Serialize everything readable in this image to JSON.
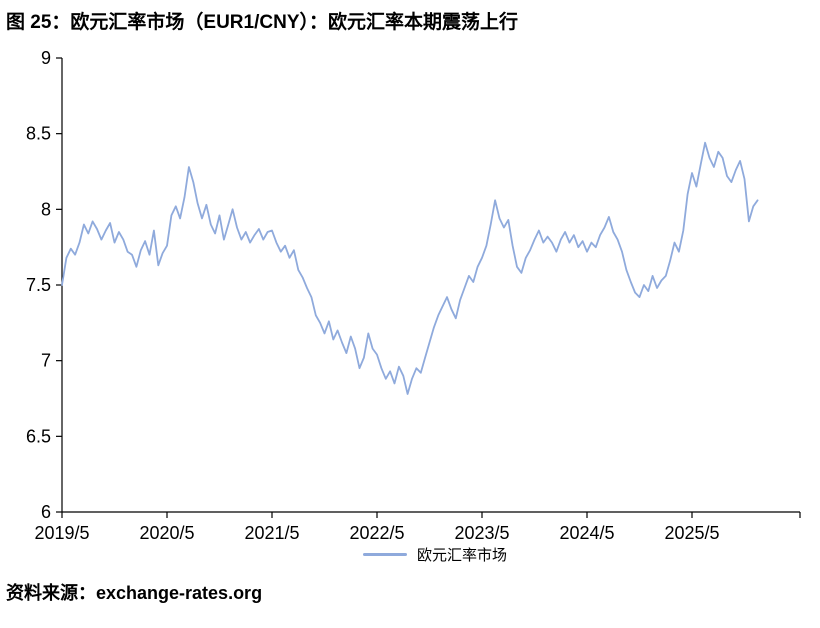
{
  "title": "图 25：欧元汇率市场（EUR1/CNY）：欧元汇率本期震荡上行",
  "source": "资料来源：exchange-rates.org",
  "legend": {
    "label": "欧元汇率市场"
  },
  "chart_data": {
    "type": "line",
    "title": "图 25：欧元汇率市场（EUR1/CNY）：欧元汇率本期震荡上行",
    "series_name": "欧元汇率市场",
    "line_color": "#8FAADC",
    "x_start": "2019/5",
    "points_per_year": 24,
    "x_tick_labels": [
      "2019/5",
      "2020/5",
      "2021/5",
      "2022/5",
      "2023/5",
      "2024/5",
      "2025/5"
    ],
    "y_ticks": [
      "6",
      "6.5",
      "7",
      "7.5",
      "8",
      "8.5",
      "9"
    ],
    "ylim": [
      6,
      9
    ],
    "xlabel": "",
    "ylabel": "",
    "grid": false,
    "legend_position": "bottom",
    "values": [
      7.5,
      7.68,
      7.74,
      7.7,
      7.78,
      7.9,
      7.84,
      7.92,
      7.87,
      7.8,
      7.86,
      7.91,
      7.78,
      7.85,
      7.8,
      7.72,
      7.7,
      7.62,
      7.73,
      7.79,
      7.7,
      7.86,
      7.63,
      7.71,
      7.76,
      7.96,
      8.02,
      7.94,
      8.08,
      8.28,
      8.18,
      8.04,
      7.94,
      8.03,
      7.9,
      7.84,
      7.96,
      7.8,
      7.9,
      8.0,
      7.88,
      7.8,
      7.85,
      7.78,
      7.83,
      7.87,
      7.8,
      7.85,
      7.86,
      7.78,
      7.72,
      7.76,
      7.68,
      7.73,
      7.6,
      7.55,
      7.48,
      7.42,
      7.3,
      7.25,
      7.18,
      7.26,
      7.14,
      7.2,
      7.12,
      7.05,
      7.16,
      7.08,
      6.95,
      7.02,
      7.18,
      7.08,
      7.04,
      6.95,
      6.88,
      6.93,
      6.85,
      6.96,
      6.9,
      6.78,
      6.88,
      6.95,
      6.92,
      7.02,
      7.12,
      7.22,
      7.3,
      7.36,
      7.42,
      7.34,
      7.28,
      7.4,
      7.48,
      7.56,
      7.52,
      7.62,
      7.68,
      7.76,
      7.9,
      8.06,
      7.94,
      7.88,
      7.93,
      7.76,
      7.62,
      7.58,
      7.68,
      7.73,
      7.8,
      7.86,
      7.78,
      7.82,
      7.78,
      7.72,
      7.8,
      7.85,
      7.78,
      7.83,
      7.75,
      7.79,
      7.72,
      7.78,
      7.75,
      7.83,
      7.88,
      7.95,
      7.85,
      7.8,
      7.72,
      7.6,
      7.52,
      7.45,
      7.42,
      7.5,
      7.46,
      7.56,
      7.48,
      7.53,
      7.56,
      7.66,
      7.78,
      7.72,
      7.86,
      8.1,
      8.24,
      8.15,
      8.3,
      8.44,
      8.34,
      8.28,
      8.38,
      8.34,
      8.22,
      8.18,
      8.26,
      8.32,
      8.2,
      7.92,
      8.02,
      8.06
    ]
  }
}
